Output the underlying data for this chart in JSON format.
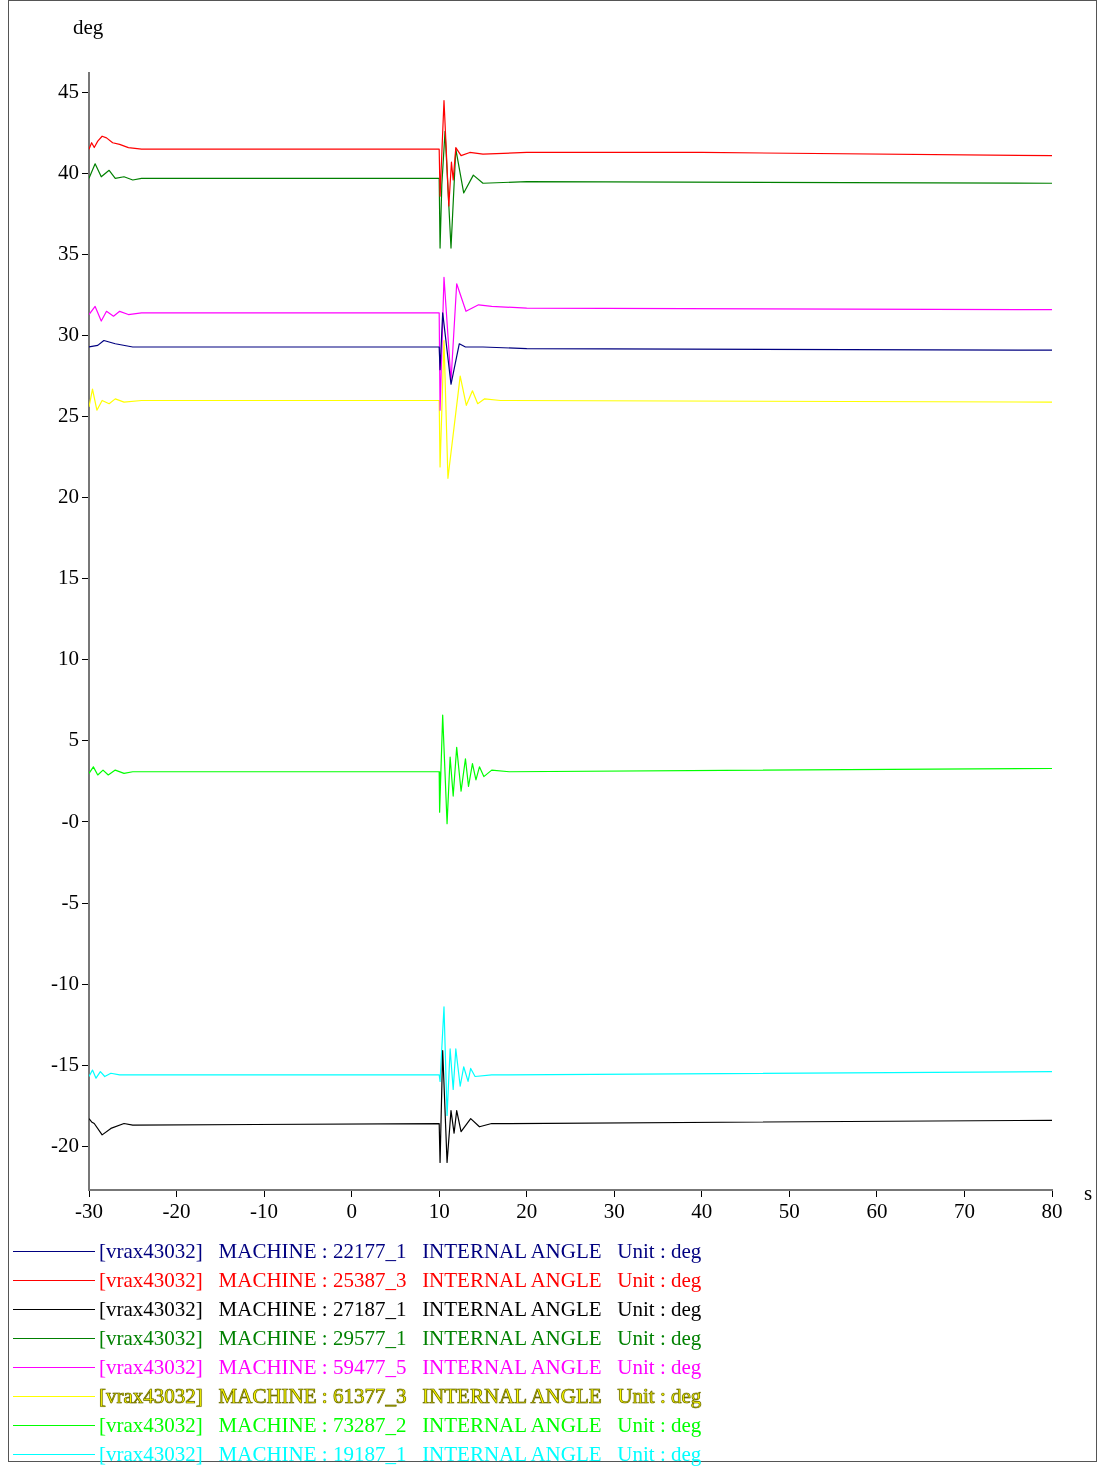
{
  "chart_data": {
    "type": "line",
    "xlabel": "s",
    "ylabel": "deg",
    "xlim": [
      -30,
      80
    ],
    "ylim": [
      -22.7,
      46.2
    ],
    "xticks": [
      -30,
      -20,
      -10,
      0,
      10,
      20,
      30,
      40,
      50,
      60,
      70,
      80
    ],
    "yticks": [
      -20,
      -15,
      -10,
      -5,
      {
        "value": 0,
        "label": "-0"
      },
      5,
      10,
      15,
      20,
      25,
      30,
      35,
      40,
      45
    ],
    "legend": "bottom",
    "marker": "none",
    "line_style": "solid",
    "series": [
      {
        "name": "[vrax43032]   MACHINE : 22177_1   INTERNAL ANGLE   Unit : deg",
        "color": "#000080",
        "x": [
          -30,
          -29,
          -28.3,
          -27,
          -25,
          -24,
          10,
          10.1,
          10.4,
          11.35,
          12.3,
          13,
          15,
          20,
          80
        ],
        "values": [
          29.3,
          29.4,
          29.7,
          29.5,
          29.3,
          29.3,
          29.3,
          27.9,
          31.4,
          27.0,
          29.5,
          29.3,
          29.3,
          29.2,
          29.1
        ]
      },
      {
        "name": "[vrax43032]   MACHINE : 25387_3   INTERNAL ANGLE   Unit : deg",
        "color": "#ff0000",
        "x": [
          -30,
          -29.7,
          -29.4,
          -29,
          -28.5,
          -28,
          -27.3,
          -26.5,
          -25.5,
          -24,
          10,
          10.1,
          10.55,
          11.1,
          11.4,
          11.6,
          11.9,
          12.5,
          13.5,
          15,
          20,
          40,
          80
        ],
        "values": [
          41.5,
          41.9,
          41.6,
          42.0,
          42.3,
          42.2,
          41.9,
          41.8,
          41.6,
          41.5,
          41.5,
          38.6,
          44.5,
          38.0,
          40.7,
          39.6,
          41.6,
          41.1,
          41.3,
          41.2,
          41.3,
          41.3,
          41.1
        ]
      },
      {
        "name": "[vrax43032]   MACHINE : 27187_1   INTERNAL ANGLE   Unit : deg",
        "color": "#000000",
        "x": [
          -30,
          -29.7,
          -29.4,
          -28.5,
          -27.5,
          -26,
          -25,
          10,
          10.1,
          10.4,
          10.9,
          11.35,
          11.7,
          12.0,
          12.5,
          13.6,
          14.6,
          16,
          18,
          80
        ],
        "values": [
          -18.3,
          -18.5,
          -18.6,
          -19.3,
          -18.9,
          -18.6,
          -18.7,
          -18.6,
          -21.0,
          -14.1,
          -21.0,
          -17.8,
          -19.2,
          -17.8,
          -19.1,
          -18.3,
          -18.8,
          -18.6,
          -18.6,
          -18.4
        ]
      },
      {
        "name": "[vrax43032]   MACHINE : 29577_1   INTERNAL ANGLE   Unit : deg",
        "color": "#008000",
        "x": [
          -30,
          -29.3,
          -28.6,
          -27.7,
          -27,
          -26,
          -25,
          -24,
          10,
          10.1,
          10.3,
          10.67,
          11.35,
          11.9,
          12.8,
          13.9,
          15,
          20,
          80
        ],
        "values": [
          39.7,
          40.6,
          39.8,
          40.2,
          39.7,
          39.8,
          39.6,
          39.7,
          39.7,
          35.4,
          39.3,
          42.6,
          35.4,
          41.5,
          38.8,
          39.9,
          39.4,
          39.5,
          39.4
        ]
      },
      {
        "name": "[vrax43032]   MACHINE : 59477_5   INTERNAL ANGLE   Unit : deg",
        "color": "#ff00ff",
        "x": [
          -30,
          -29.3,
          -28.6,
          -28,
          -27.2,
          -26.5,
          -25.5,
          -24,
          10,
          10.1,
          10.55,
          11.35,
          12.0,
          13.06,
          14.5,
          16,
          20,
          80
        ],
        "values": [
          31.3,
          31.8,
          30.9,
          31.5,
          31.2,
          31.5,
          31.3,
          31.4,
          31.4,
          25.4,
          33.6,
          27.2,
          33.2,
          31.5,
          31.9,
          31.8,
          31.7,
          31.6
        ]
      },
      {
        "name": "[vrax43032]   MACHINE : 61377_3   INTERNAL ANGLE   Unit : deg",
        "color": "#ffff00",
        "x": [
          -30,
          -29.6,
          -29.1,
          -28.5,
          -27.7,
          -27,
          -26,
          -24,
          10,
          10.1,
          10.55,
          11.0,
          12.4,
          13.1,
          13.8,
          14.4,
          15.2,
          17,
          80
        ],
        "values": [
          25.6,
          26.7,
          25.4,
          26.0,
          25.8,
          26.1,
          25.9,
          26.0,
          26.0,
          21.9,
          29.7,
          21.2,
          27.5,
          25.7,
          26.6,
          25.8,
          26.1,
          26.0,
          25.9
        ]
      },
      {
        "name": "[vrax43032]   MACHINE : 73287_2   INTERNAL ANGLE   Unit : deg",
        "color": "#00ff00",
        "x": [
          -30,
          -29.5,
          -29,
          -28.4,
          -27.8,
          -27,
          -26,
          -25,
          10,
          10.05,
          10.4,
          10.9,
          11.25,
          11.6,
          12.0,
          12.5,
          13.0,
          13.35,
          13.8,
          14.2,
          14.6,
          15.1,
          16,
          18,
          80
        ],
        "values": [
          3.0,
          3.4,
          2.9,
          3.2,
          2.9,
          3.2,
          3.0,
          3.1,
          3.1,
          0.6,
          6.6,
          -0.1,
          4.0,
          1.6,
          4.6,
          1.9,
          3.9,
          2.2,
          3.6,
          2.6,
          3.4,
          2.8,
          3.2,
          3.1,
          3.3
        ]
      },
      {
        "name": "[vrax43032]   MACHINE : 19187_1   INTERNAL ANGLE   Unit : deg",
        "color": "#00ffff",
        "x": [
          -30,
          -29.6,
          -29.2,
          -28.7,
          -28.2,
          -27.5,
          -26.5,
          -25,
          10,
          10.1,
          10.55,
          10.9,
          11.25,
          11.6,
          11.9,
          12.4,
          12.8,
          13.3,
          13.6,
          14.1,
          16,
          80
        ],
        "values": [
          -15.7,
          -15.3,
          -15.8,
          -15.4,
          -15.7,
          -15.5,
          -15.6,
          -15.6,
          -15.6,
          -16.0,
          -11.4,
          -18.1,
          -14.0,
          -16.5,
          -14.0,
          -16.3,
          -15.1,
          -16.0,
          -15.2,
          -15.7,
          -15.6,
          -15.4
        ]
      }
    ]
  }
}
